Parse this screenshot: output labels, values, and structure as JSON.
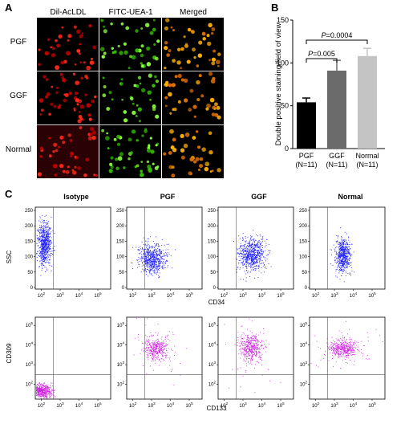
{
  "panel_a": {
    "label": "A",
    "col_headers": [
      "Dil-AcLDL",
      "FITC-UEA-1",
      "Merged"
    ],
    "row_labels": [
      "PGF",
      "GGF",
      "Normal"
    ]
  },
  "panel_b": {
    "label": "B",
    "chart_data": {
      "type": "bar",
      "ylabel": "Double positive staining/field of view",
      "categories": [
        "PGF",
        "GGF",
        "Normal"
      ],
      "category_sublabels": [
        "(N=11)",
        "(N=11)",
        "(N=11)"
      ],
      "values": [
        54,
        91,
        108
      ],
      "errors": [
        5,
        12,
        9
      ],
      "ylim": [
        0,
        150
      ],
      "yticks": [
        0,
        50,
        100,
        150
      ],
      "bar_colors": [
        "#000000",
        "#6b6b6b",
        "#c4c4c4"
      ],
      "annotations": [
        {
          "text": "P=0.005",
          "from": "PGF",
          "to": "GGF"
        },
        {
          "text": "P=0.0004",
          "from": "PGF",
          "to": "Normal"
        }
      ]
    }
  },
  "panel_c": {
    "label": "C",
    "column_titles": [
      "Isotype",
      "PGF",
      "GGF",
      "Normal"
    ],
    "row1": {
      "ylabel": "SSC",
      "xlabel": "CD34",
      "yticks": [
        "0",
        "50",
        "100",
        "150",
        "200",
        "250"
      ],
      "xticks": [
        "10",
        "10",
        "10",
        "10"
      ],
      "xtick_exps": [
        "2",
        "3",
        "4",
        "5"
      ],
      "dot_color": "#1a1aff"
    },
    "row2": {
      "ylabel": "CD309",
      "xlabel": "CD133",
      "ytick_base": "10",
      "ytick_exps": [
        "2",
        "3",
        "4",
        "5"
      ],
      "xticks": [
        "10",
        "10",
        "10",
        "10"
      ],
      "xtick_exps": [
        "2",
        "3",
        "4",
        "5"
      ],
      "dot_color": "#cc22dd"
    }
  }
}
